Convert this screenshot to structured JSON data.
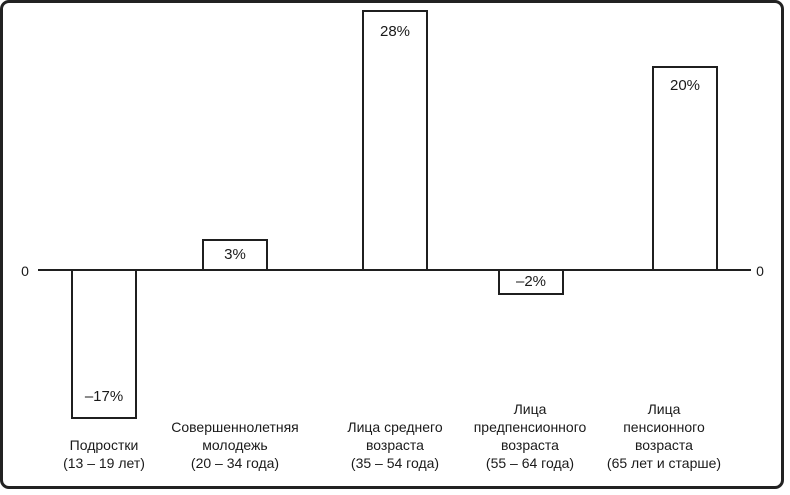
{
  "frame": {
    "background": "#ffffff",
    "border_color": "#222222"
  },
  "chart_data": {
    "type": "bar",
    "title": "",
    "xlabel": "",
    "ylabel": "",
    "baseline": 0,
    "ylim": [
      -20,
      30
    ],
    "grid": false,
    "legend": false,
    "bar_fill": "#ffffff",
    "bar_border": "#1f1f1f",
    "axis_zero_labels": {
      "left": "0",
      "right": "0"
    },
    "categories": [
      {
        "label": "Подростки (13 – 19 лет)",
        "lines": [
          "Подростки",
          "(13 – 19 лет)"
        ]
      },
      {
        "label": "Совершеннолетняя молодежь (20 – 34 года)",
        "lines": [
          "Совершеннолетняя",
          "молодежь",
          "(20 – 34 года)"
        ]
      },
      {
        "label": "Лица среднего возраста (35 – 54 года)",
        "lines": [
          "Лица среднего",
          "возраста",
          "(35 – 54 года)"
        ]
      },
      {
        "label": "Лица предпенсионного возраста (55 – 64 года)",
        "lines": [
          "Лица",
          "предпенсионного",
          "возраста",
          "(55 – 64 года)"
        ]
      },
      {
        "label": "Лица пенсионного возраста (65 лет и старше)",
        "lines": [
          "Лица",
          "пенсионного",
          "возраста",
          "(65 лет и старше)"
        ]
      }
    ],
    "values": [
      -17,
      3,
      28,
      -2,
      20
    ],
    "value_labels": [
      "–17%",
      "3%",
      "28%",
      "–2%",
      "20%"
    ]
  }
}
